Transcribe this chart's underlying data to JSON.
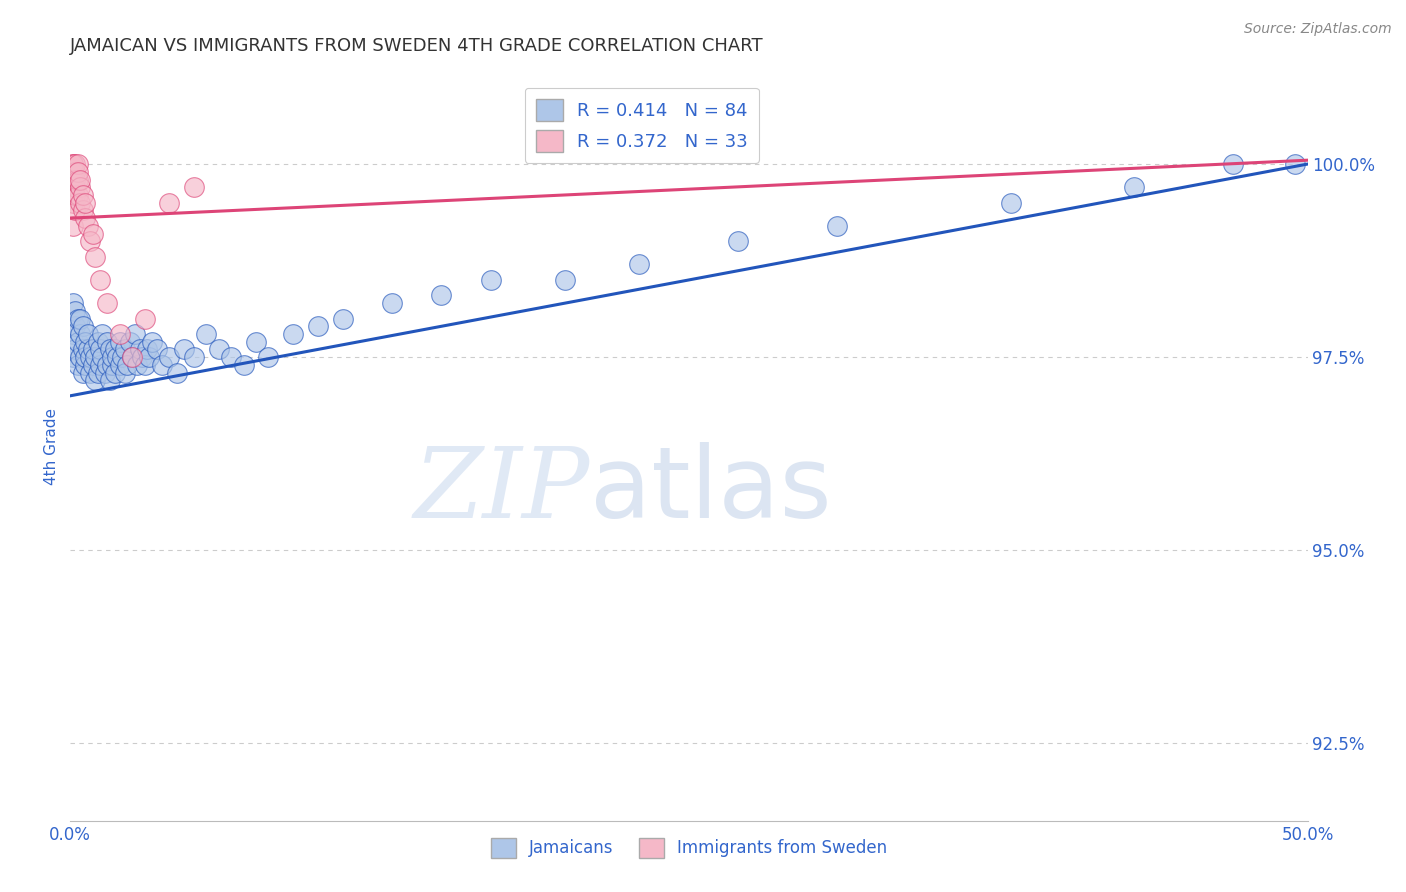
{
  "title": "JAMAICAN VS IMMIGRANTS FROM SWEDEN 4TH GRADE CORRELATION CHART",
  "source_text": "Source: ZipAtlas.com",
  "ylabel": "4th Grade",
  "x_min": 0.0,
  "x_max": 0.5,
  "y_min": 91.5,
  "y_max": 101.2,
  "x_ticks": [
    0.0,
    0.5
  ],
  "x_tick_labels": [
    "0.0%",
    "50.0%"
  ],
  "y_ticks": [
    92.5,
    95.0,
    97.5,
    100.0
  ],
  "y_tick_labels": [
    "92.5%",
    "95.0%",
    "97.5%",
    "100.0%"
  ],
  "blue_color": "#aec6e8",
  "blue_line_color": "#2255bb",
  "pink_color": "#f5b8c8",
  "pink_line_color": "#dd4477",
  "R_blue": 0.414,
  "N_blue": 84,
  "R_pink": 0.372,
  "N_pink": 33,
  "legend_label_blue": "Jamaicans",
  "legend_label_pink": "Immigrants from Sweden",
  "watermark_zip": "ZIP",
  "watermark_atlas": "atlas",
  "background_color": "#ffffff",
  "grid_color": "#cccccc",
  "title_color": "#333333",
  "axis_label_color": "#3366cc",
  "blue_line_y0": 97.0,
  "blue_line_y1": 100.0,
  "pink_line_y0": 99.3,
  "pink_line_y1": 100.05,
  "blue_scatter_x": [
    0.001,
    0.001,
    0.001,
    0.002,
    0.002,
    0.002,
    0.003,
    0.003,
    0.003,
    0.004,
    0.004,
    0.004,
    0.005,
    0.005,
    0.005,
    0.006,
    0.006,
    0.006,
    0.007,
    0.007,
    0.008,
    0.008,
    0.009,
    0.009,
    0.01,
    0.01,
    0.011,
    0.011,
    0.012,
    0.012,
    0.013,
    0.013,
    0.014,
    0.015,
    0.015,
    0.016,
    0.016,
    0.017,
    0.017,
    0.018,
    0.018,
    0.019,
    0.02,
    0.02,
    0.021,
    0.022,
    0.022,
    0.023,
    0.024,
    0.025,
    0.026,
    0.027,
    0.028,
    0.029,
    0.03,
    0.031,
    0.032,
    0.033,
    0.035,
    0.037,
    0.04,
    0.043,
    0.046,
    0.05,
    0.055,
    0.06,
    0.065,
    0.07,
    0.075,
    0.08,
    0.09,
    0.1,
    0.11,
    0.13,
    0.15,
    0.17,
    0.2,
    0.23,
    0.27,
    0.31,
    0.38,
    0.43,
    0.47,
    0.495
  ],
  "blue_scatter_y": [
    97.8,
    98.2,
    97.5,
    97.6,
    97.9,
    98.1,
    97.4,
    97.7,
    98.0,
    97.5,
    97.8,
    98.0,
    97.3,
    97.6,
    97.9,
    97.4,
    97.7,
    97.5,
    97.6,
    97.8,
    97.3,
    97.5,
    97.4,
    97.6,
    97.2,
    97.5,
    97.3,
    97.7,
    97.4,
    97.6,
    97.5,
    97.8,
    97.3,
    97.4,
    97.7,
    97.2,
    97.6,
    97.4,
    97.5,
    97.3,
    97.6,
    97.5,
    97.4,
    97.7,
    97.5,
    97.3,
    97.6,
    97.4,
    97.7,
    97.5,
    97.8,
    97.4,
    97.6,
    97.5,
    97.4,
    97.6,
    97.5,
    97.7,
    97.6,
    97.4,
    97.5,
    97.3,
    97.6,
    97.5,
    97.8,
    97.6,
    97.5,
    97.4,
    97.7,
    97.5,
    97.8,
    97.9,
    98.0,
    98.2,
    98.3,
    98.5,
    98.5,
    98.7,
    99.0,
    99.2,
    99.5,
    99.7,
    100.0,
    100.0
  ],
  "pink_scatter_x": [
    0.001,
    0.001,
    0.001,
    0.001,
    0.001,
    0.002,
    0.002,
    0.002,
    0.002,
    0.002,
    0.002,
    0.003,
    0.003,
    0.003,
    0.003,
    0.004,
    0.004,
    0.004,
    0.005,
    0.005,
    0.006,
    0.006,
    0.007,
    0.008,
    0.009,
    0.01,
    0.012,
    0.015,
    0.02,
    0.025,
    0.03,
    0.04,
    0.05
  ],
  "pink_scatter_y": [
    99.8,
    100.0,
    100.0,
    99.5,
    99.2,
    99.7,
    99.9,
    100.0,
    99.4,
    99.6,
    99.8,
    99.6,
    99.8,
    100.0,
    99.9,
    99.7,
    99.5,
    99.8,
    99.4,
    99.6,
    99.3,
    99.5,
    99.2,
    99.0,
    99.1,
    98.8,
    98.5,
    98.2,
    97.8,
    97.5,
    98.0,
    99.5,
    99.7
  ]
}
